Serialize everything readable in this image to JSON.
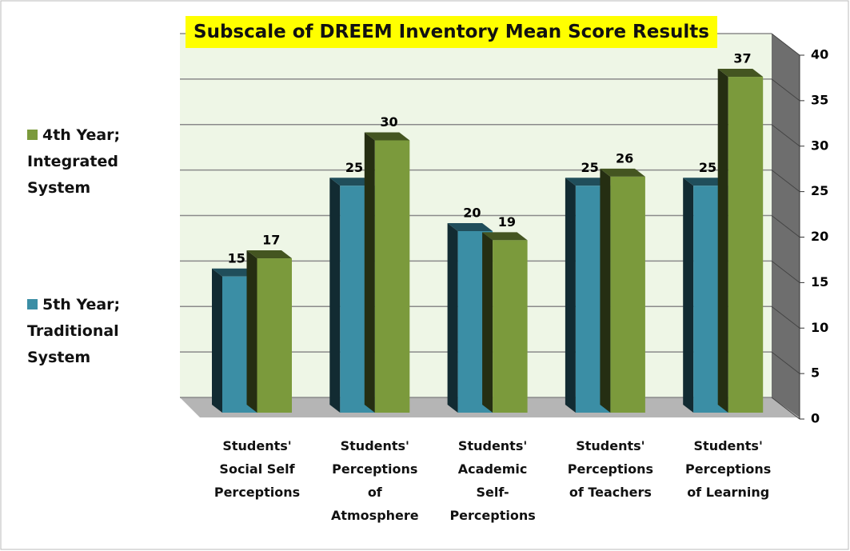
{
  "chart_data": {
    "type": "bar3d",
    "title": "Subscale of DREEM Inventory Mean Score Results",
    "categories": [
      "Students' Social Self Perceptions",
      "Students' Perceptions of Atmosphere",
      "Students' Academic Self-Perceptions",
      "Students' Perceptions of Teachers",
      "Students' Perceptions of Learning"
    ],
    "series": [
      {
        "name": "5th Year; Traditional System",
        "color": "#3b8ea5",
        "values": [
          15,
          25,
          20,
          25,
          25
        ]
      },
      {
        "name": "4th Year; Integrated System",
        "color": "#7b9a3c",
        "values": [
          17,
          30,
          19,
          26,
          37
        ]
      }
    ],
    "ylim": [
      0,
      40
    ],
    "yticks": [
      0,
      5,
      10,
      15,
      20,
      25,
      30,
      35,
      40
    ],
    "grid": true,
    "legend": "left"
  }
}
